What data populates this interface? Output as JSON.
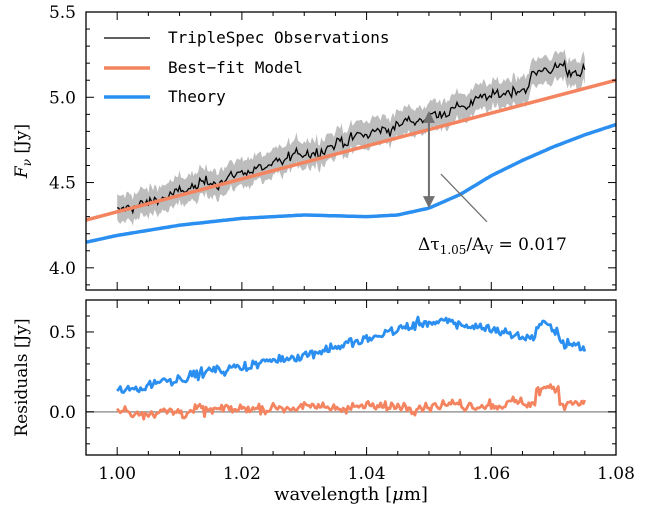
{
  "chart_data": [
    {
      "type": "line",
      "panel": "top",
      "ylabel": "F_ν [Jy]",
      "ylabel_symbol": "F",
      "ylabel_sub": "ν",
      "ylabel_unit": " [Jy]",
      "xlim": [
        0.995,
        1.08
      ],
      "ylim": [
        3.87,
        5.5
      ],
      "yticks": [
        4.0,
        4.5,
        5.0,
        5.5
      ],
      "ytick_labels": [
        "4.0",
        "4.5",
        "5.0",
        "5.5"
      ],
      "legend": {
        "placement": "top-left",
        "entries": [
          "TripleSpec Observations",
          "Best−fit Model",
          "Theory"
        ]
      },
      "series": [
        {
          "name": "TripleSpec Observations",
          "color": "#000000",
          "band_color": "#bdbdbd",
          "x_start": 1.0,
          "x_end": 1.075,
          "y_start": 4.33,
          "y_end": 5.17,
          "points": 300
        },
        {
          "name": "Best−fit Model",
          "color": "#f4845f",
          "x": [
            0.995,
            1.08
          ],
          "y": [
            4.28,
            5.1
          ]
        },
        {
          "name": "Theory",
          "color": "#2a8ff0",
          "x": [
            0.995,
            1.0,
            1.01,
            1.02,
            1.03,
            1.04,
            1.045,
            1.05,
            1.055,
            1.06,
            1.065,
            1.07,
            1.075,
            1.08
          ],
          "y": [
            4.15,
            4.19,
            4.25,
            4.29,
            4.31,
            4.3,
            4.31,
            4.35,
            4.43,
            4.54,
            4.63,
            4.71,
            4.78,
            4.84
          ]
        }
      ],
      "annotation": {
        "text_main": "Δτ",
        "text_sub1": "1.05",
        "text_mid": "/A",
        "text_sub2": "V",
        "text_tail": " = 0.017",
        "arrow_x": 1.05,
        "arrow_y_top": 4.92,
        "arrow_y_bottom": 4.35
      }
    },
    {
      "type": "line",
      "panel": "bottom",
      "xlabel": "wavelength [μm]",
      "xlabel_pre": "wavelength [",
      "xlabel_mu": "μ",
      "xlabel_post": "m]",
      "ylabel": "Residuals [Jy]",
      "xlim": [
        0.995,
        1.08
      ],
      "ylim": [
        -0.27,
        0.7
      ],
      "xticks": [
        1.0,
        1.02,
        1.04,
        1.06,
        1.08
      ],
      "xtick_labels": [
        "1.00",
        "1.02",
        "1.04",
        "1.06",
        "1.08"
      ],
      "yticks": [
        0.0,
        0.5
      ],
      "ytick_labels": [
        "0.0",
        "0.5"
      ],
      "series": [
        {
          "name": "Theory",
          "color": "#2a8ff0",
          "x": [
            1.0,
            1.01,
            1.02,
            1.03,
            1.04,
            1.045,
            1.05,
            1.055,
            1.06,
            1.065,
            1.07,
            1.075
          ],
          "y": [
            0.12,
            0.22,
            0.28,
            0.36,
            0.45,
            0.52,
            0.56,
            0.55,
            0.52,
            0.47,
            0.45,
            0.4
          ]
        },
        {
          "name": "Best−fit Model",
          "color": "#f4845f",
          "x": [
            1.0,
            1.01,
            1.02,
            1.03,
            1.04,
            1.05,
            1.06,
            1.07,
            1.075
          ],
          "y": [
            0.0,
            0.0,
            0.02,
            0.03,
            0.03,
            0.04,
            0.04,
            0.07,
            0.06
          ]
        }
      ]
    }
  ]
}
